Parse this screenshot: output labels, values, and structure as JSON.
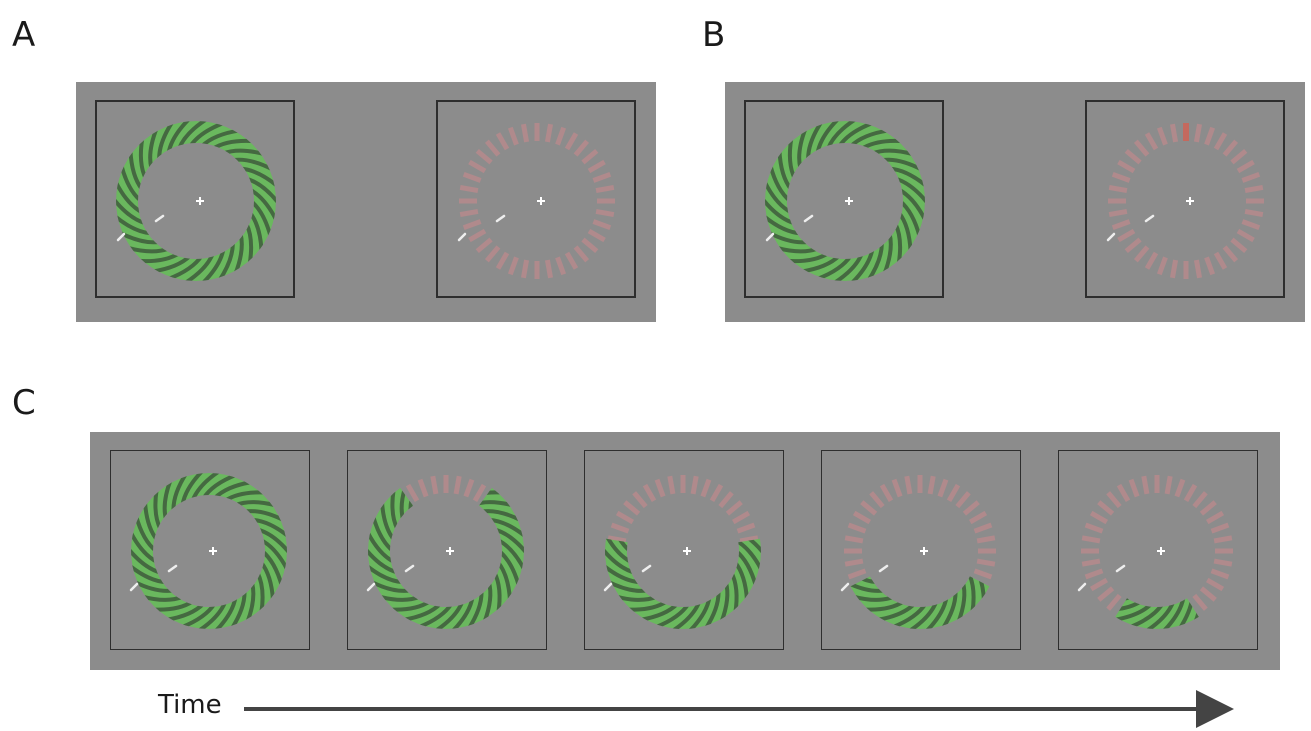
{
  "panel_labels": {
    "a": "A",
    "b": "B",
    "c": "C"
  },
  "time_label": "Time",
  "colors": {
    "background": "#8c8c8c",
    "grating_light": "#6ab85e",
    "grating_dark": "#3e5a3c",
    "pink_segment": "#b08a8c",
    "cued_segment": "#c4695e",
    "fixation": "#ffffff",
    "frame_border": "#2e2e2e"
  },
  "icons": [
    "fixation-cross-icon",
    "time-arrow-icon"
  ],
  "stimuli": {
    "panel_a": [
      {
        "display": "full-grating",
        "green_fraction": 1.0
      },
      {
        "display": "all-segments",
        "green_fraction": 0.0,
        "cued": false
      }
    ],
    "panel_b": [
      {
        "display": "full-grating",
        "green_fraction": 1.0
      },
      {
        "display": "all-segments",
        "green_fraction": 0.0,
        "cued": true,
        "cued_position": "top"
      }
    ],
    "panel_c_sequence": [
      {
        "green_fraction": 1.0
      },
      {
        "green_fraction": 0.8
      },
      {
        "green_fraction": 0.55
      },
      {
        "green_fraction": 0.35
      },
      {
        "green_fraction": 0.18
      }
    ]
  }
}
